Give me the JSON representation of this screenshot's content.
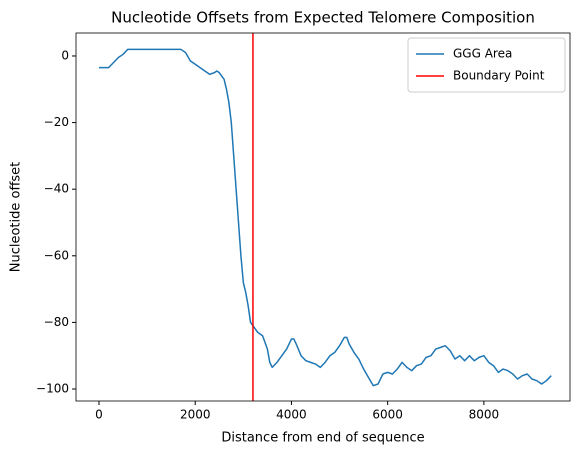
{
  "chart_data": {
    "type": "line",
    "title": "Nucleotide Offsets from Expected Telomere Composition",
    "x_label": "Distance from end of sequence",
    "y_label": "Nucleotide offset",
    "x": [
      0,
      200,
      300,
      400,
      500,
      600,
      800,
      1000,
      1200,
      1400,
      1600,
      1700,
      1800,
      1900,
      2000,
      2100,
      2200,
      2300,
      2400,
      2450,
      2500,
      2600,
      2650,
      2700,
      2750,
      2800,
      2850,
      2900,
      2950,
      3000,
      3050,
      3100,
      3150,
      3200,
      3300,
      3400,
      3500,
      3550,
      3600,
      3700,
      3800,
      3900,
      4000,
      4050,
      4100,
      4200,
      4300,
      4400,
      4500,
      4600,
      4700,
      4800,
      4900,
      5000,
      5100,
      5150,
      5200,
      5300,
      5400,
      5500,
      5600,
      5700,
      5800,
      5900,
      6000,
      6100,
      6200,
      6300,
      6400,
      6500,
      6600,
      6700,
      6800,
      6900,
      7000,
      7100,
      7200,
      7300,
      7400,
      7500,
      7600,
      7700,
      7800,
      7900,
      8000,
      8100,
      8200,
      8300,
      8400,
      8500,
      8600,
      8700,
      8800,
      8900,
      9000,
      9100,
      9200,
      9300,
      9400
    ],
    "series": [
      {
        "name": "GGG Area",
        "color": "#1f77b4",
        "values": [
          -3.5,
          -3.5,
          -2,
          -0.5,
          0.5,
          2,
          2,
          2,
          2,
          2,
          2,
          2,
          1,
          -1.5,
          -2.5,
          -3.5,
          -4.5,
          -5.5,
          -5,
          -4.5,
          -5,
          -7,
          -10,
          -14,
          -20,
          -30,
          -40,
          -50,
          -60,
          -68,
          -71,
          -75,
          -80,
          -81,
          -83,
          -84,
          -88,
          -92,
          -93.5,
          -92,
          -90,
          -88,
          -85,
          -85,
          -86.5,
          -90,
          -91.5,
          -92,
          -92.5,
          -93.5,
          -92,
          -90,
          -89,
          -87,
          -84.5,
          -84.5,
          -86.5,
          -89,
          -91,
          -94,
          -96.5,
          -99,
          -98.5,
          -95.5,
          -95,
          -95.5,
          -94,
          -92,
          -93.5,
          -94.5,
          -93,
          -92.5,
          -90.5,
          -90,
          -88,
          -87.5,
          -87,
          -88.5,
          -91,
          -90,
          -91.5,
          -90,
          -91.5,
          -90.5,
          -90,
          -92,
          -93,
          -95,
          -94,
          -94.5,
          -95.5,
          -97,
          -96,
          -95.5,
          -97,
          -97.5,
          -98.5,
          -97.5,
          -96
        ]
      }
    ],
    "vlines": [
      {
        "name": "Boundary Point",
        "color": "#ff0000",
        "x": 3200
      }
    ],
    "xlim": [
      -478,
      9790
    ],
    "ylim": [
      -103.6,
      6.9
    ],
    "xticks": [
      0,
      2000,
      4000,
      6000,
      8000
    ],
    "yticks": [
      0,
      {
        "value": -20,
        "label": "−20"
      },
      {
        "value": -40,
        "label": "−40"
      },
      {
        "value": -60,
        "label": "−60"
      },
      {
        "value": -80,
        "label": "−80"
      },
      {
        "value": -100,
        "label": "−100"
      }
    ],
    "legend": "upper right",
    "grid": false
  }
}
